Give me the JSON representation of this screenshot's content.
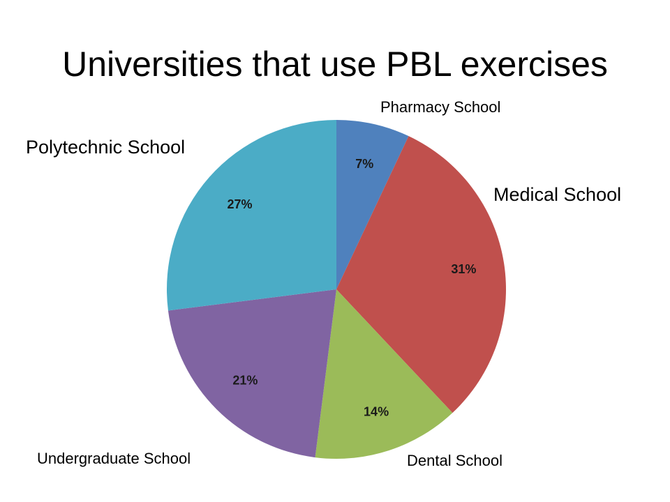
{
  "chart_data": {
    "type": "pie",
    "title": "Universities that use PBL exercises",
    "slices": [
      {
        "label": "Pharmacy School",
        "value": 7,
        "value_label": "7%",
        "color": "#4F81BD"
      },
      {
        "label": "Medical School",
        "value": 31,
        "value_label": "31%",
        "color": "#C0504D"
      },
      {
        "label": "Dental School",
        "value": 14,
        "value_label": "14%",
        "color": "#9BBB59"
      },
      {
        "label": "Undergraduate School",
        "value": 21,
        "value_label": "21%",
        "color": "#8064A2"
      },
      {
        "label": "Polytechnic School",
        "value": 27,
        "value_label": "27%",
        "color": "#4BACC6"
      }
    ],
    "start_angle_deg": 0,
    "direction": "clockwise",
    "legend": "none"
  }
}
